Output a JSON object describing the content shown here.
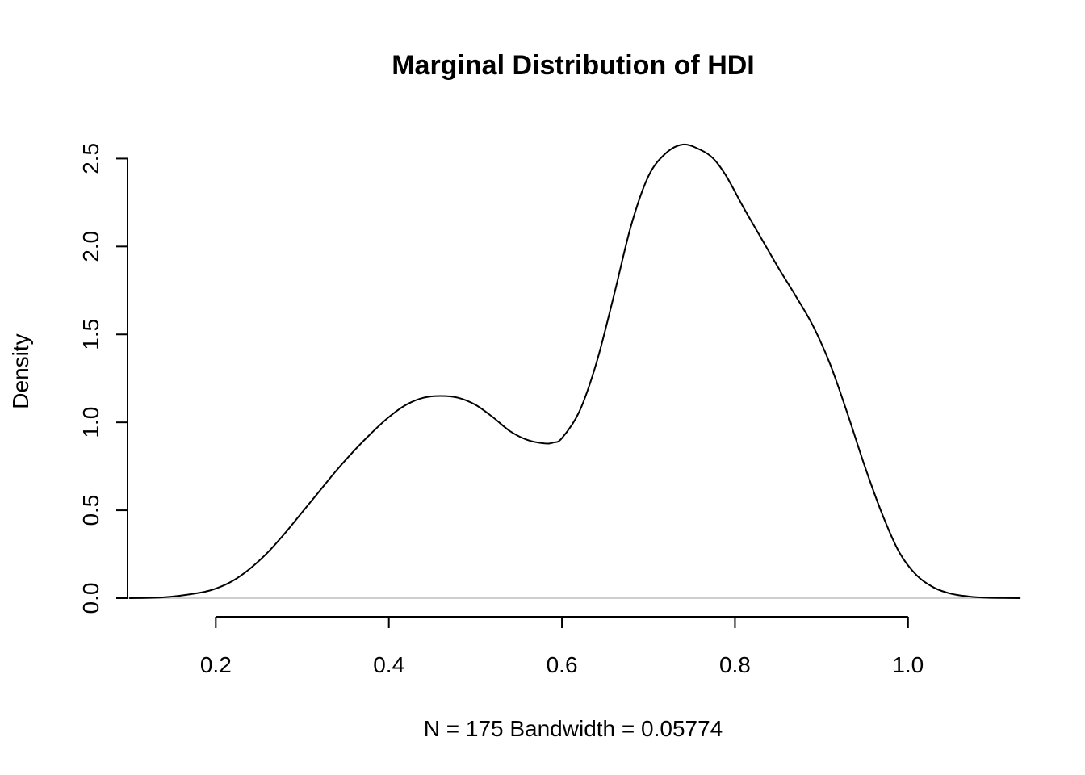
{
  "chart_data": {
    "type": "line",
    "title": "Marginal Distribution of HDI",
    "xlabel": "N = 175   Bandwidth = 0.05774",
    "ylabel": "Density",
    "xlim": [
      0.098,
      1.128
    ],
    "ylim": [
      0,
      2.58
    ],
    "x_ticks": [
      0.2,
      0.4,
      0.6,
      0.8,
      1.0
    ],
    "x_tick_labels": [
      "0.2",
      "0.4",
      "0.6",
      "0.8",
      "1.0"
    ],
    "y_ticks": [
      0.0,
      0.5,
      1.0,
      1.5,
      2.0,
      2.5
    ],
    "y_tick_labels": [
      "0.0",
      "0.5",
      "1.0",
      "1.5",
      "2.0",
      "2.5"
    ],
    "grid": false,
    "baseline": {
      "y": 0,
      "color": "#bebebe"
    },
    "line_color": "#000000",
    "series": [
      {
        "x": [
          0.1,
          0.14,
          0.18,
          0.2,
          0.22,
          0.24,
          0.26,
          0.28,
          0.3,
          0.32,
          0.34,
          0.36,
          0.38,
          0.4,
          0.42,
          0.44,
          0.46,
          0.48,
          0.5,
          0.52,
          0.54,
          0.56,
          0.58,
          0.59,
          0.6,
          0.62,
          0.64,
          0.66,
          0.68,
          0.7,
          0.72,
          0.74,
          0.76,
          0.775,
          0.79,
          0.81,
          0.83,
          0.85,
          0.87,
          0.89,
          0.91,
          0.93,
          0.95,
          0.97,
          0.99,
          1.01,
          1.03,
          1.05,
          1.07,
          1.09,
          1.11,
          1.13
        ],
        "y": [
          0.0,
          0.005,
          0.03,
          0.055,
          0.1,
          0.17,
          0.26,
          0.37,
          0.49,
          0.61,
          0.73,
          0.84,
          0.94,
          1.03,
          1.1,
          1.14,
          1.15,
          1.14,
          1.1,
          1.03,
          0.95,
          0.9,
          0.88,
          0.885,
          0.91,
          1.06,
          1.34,
          1.72,
          2.12,
          2.4,
          2.53,
          2.58,
          2.55,
          2.5,
          2.4,
          2.22,
          2.05,
          1.88,
          1.72,
          1.55,
          1.33,
          1.05,
          0.75,
          0.48,
          0.26,
          0.13,
          0.06,
          0.025,
          0.01,
          0.003,
          0.001,
          0.0
        ]
      }
    ]
  }
}
